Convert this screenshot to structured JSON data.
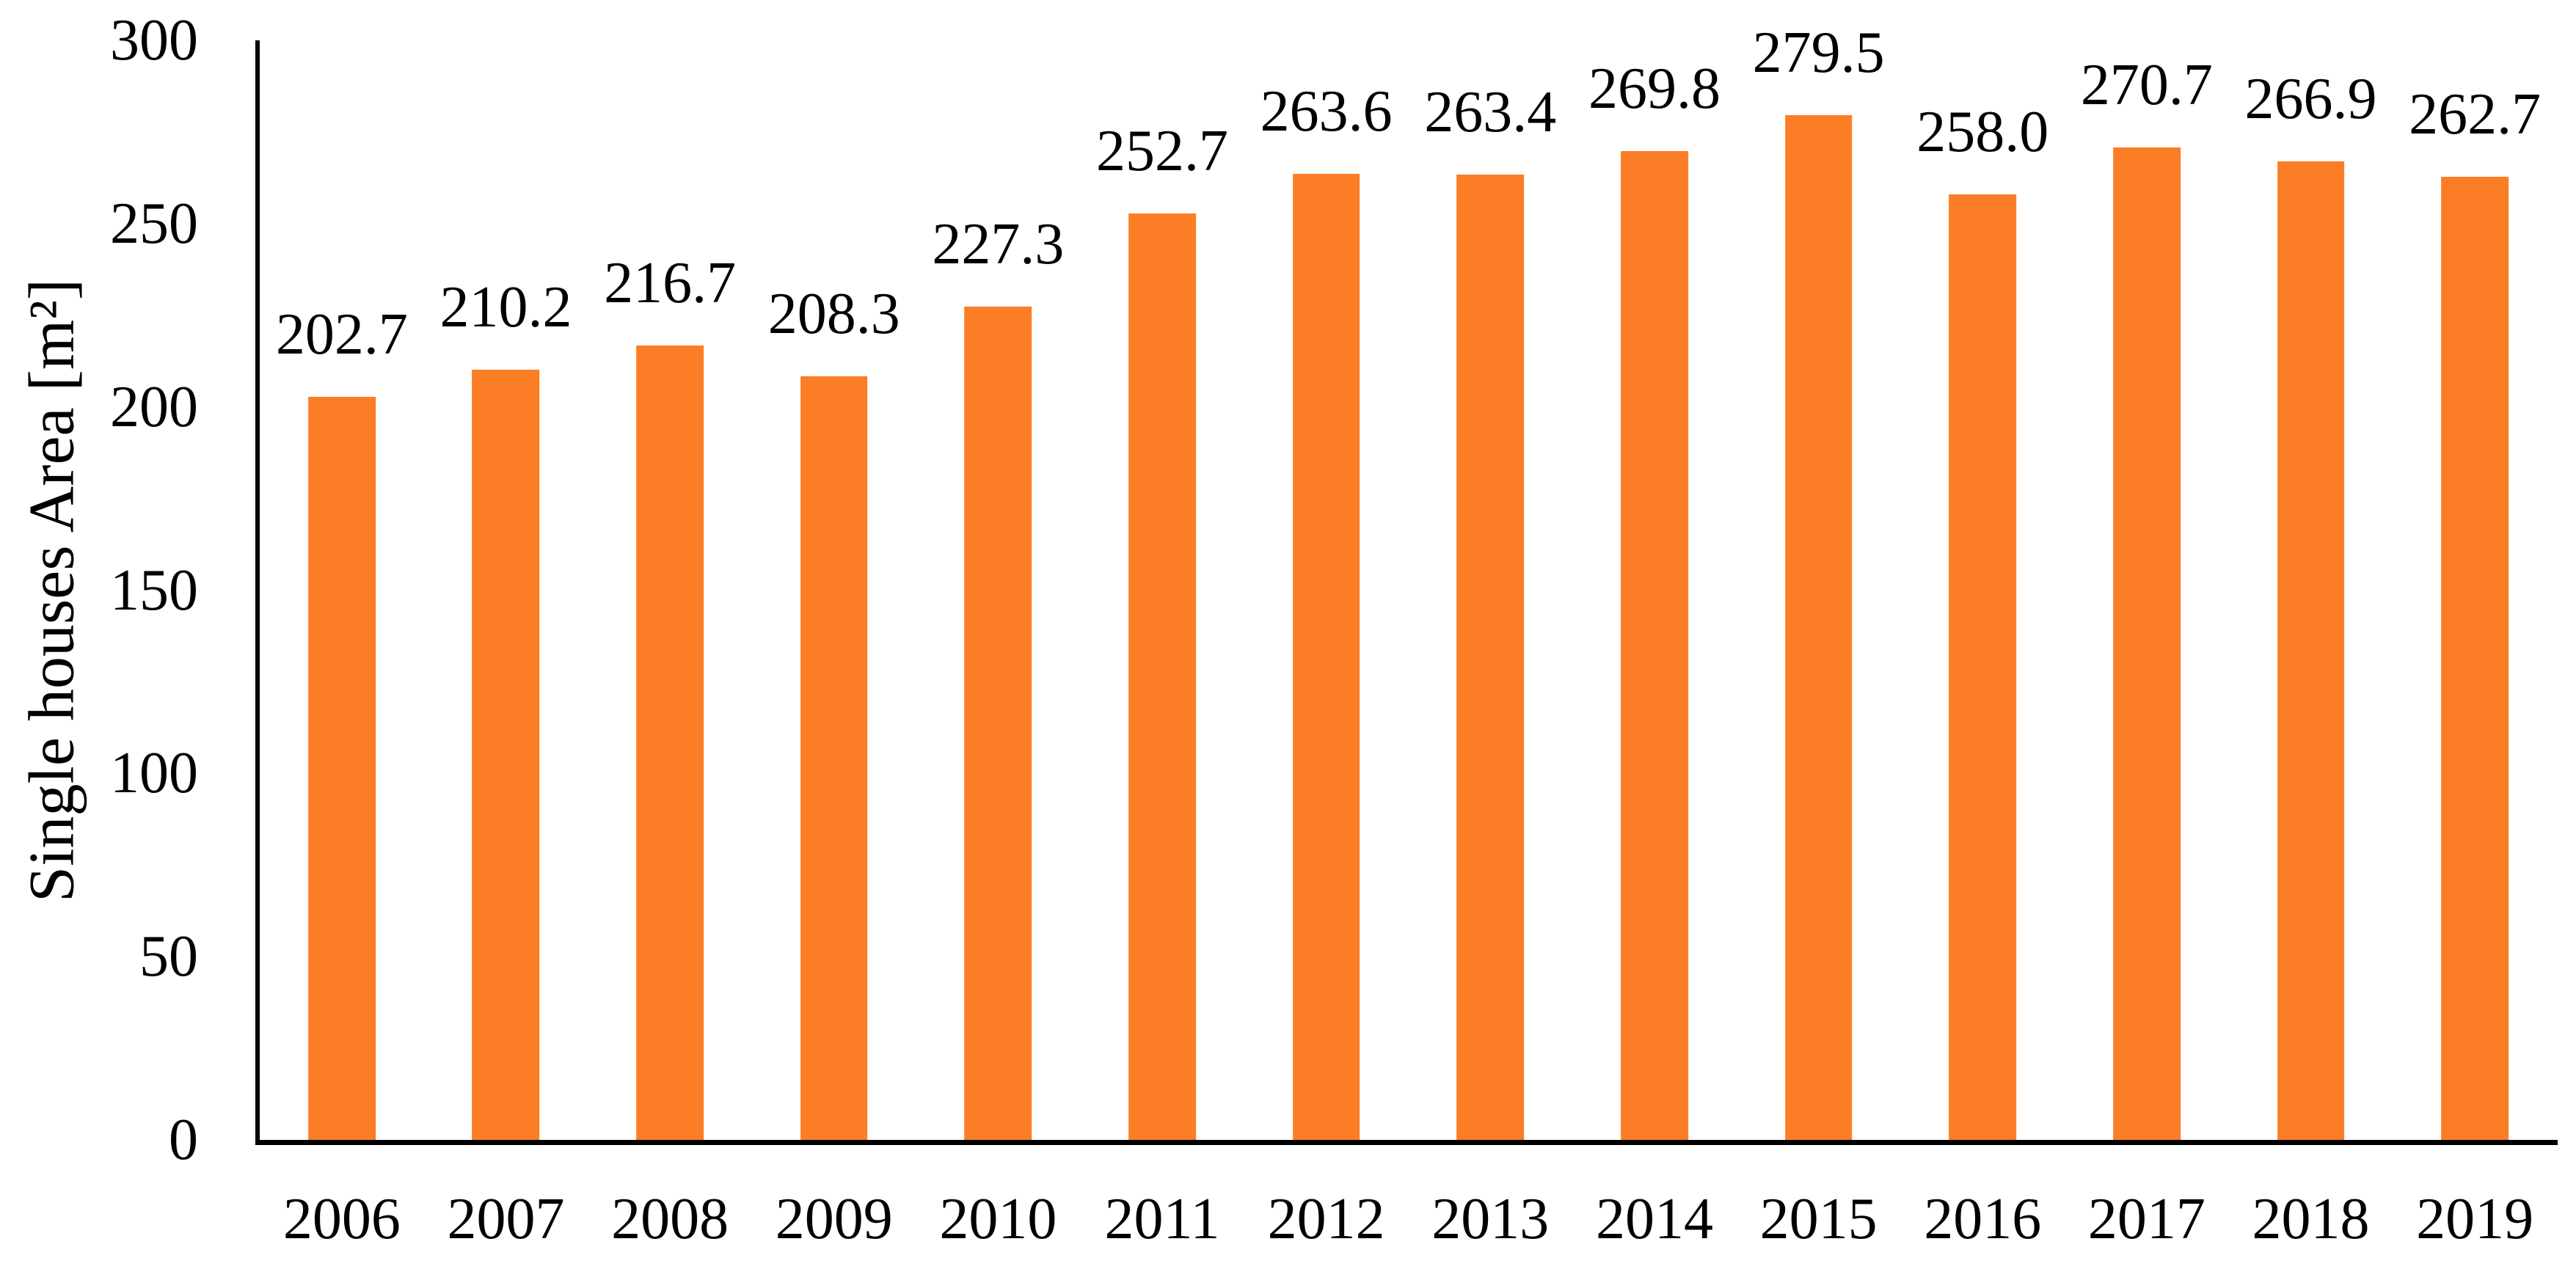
{
  "chart_data": {
    "type": "bar",
    "title": "",
    "xlabel": "",
    "ylabel": "Single houses Area [m²]",
    "categories": [
      "2006",
      "2007",
      "2008",
      "2009",
      "2010",
      "2011",
      "2012",
      "2013",
      "2014",
      "2015",
      "2016",
      "2017",
      "2018",
      "2019"
    ],
    "values": [
      202.7,
      210.2,
      216.7,
      208.3,
      227.3,
      252.7,
      263.6,
      263.4,
      269.8,
      279.5,
      258.0,
      270.7,
      266.9,
      262.7
    ],
    "value_labels": [
      "202.7",
      "210.2",
      "216.7",
      "208.3",
      "227.3",
      "252.7",
      "263.6",
      "263.4",
      "269.8",
      "279.5",
      "258.0",
      "270.7",
      "266.9",
      "262.7"
    ],
    "ylim": [
      0,
      300
    ],
    "yticks": [
      0,
      50,
      100,
      150,
      200,
      250,
      300
    ],
    "grid": false,
    "legend_position": "none",
    "bar_color": "#FB7D25",
    "axis_color": "#000000",
    "label_color": "#000000"
  }
}
